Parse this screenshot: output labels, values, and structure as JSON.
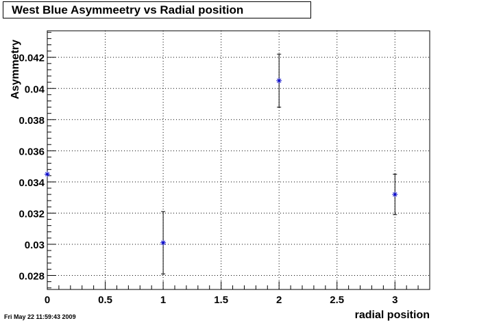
{
  "chart_data": {
    "type": "scatter",
    "title": "West Blue Asymmeetry vs Radial position",
    "xlabel": "radial position",
    "ylabel": "Asymmetry",
    "xlim": [
      0,
      3.3
    ],
    "ylim": [
      0.0271,
      0.0437
    ],
    "x_ticks": [
      0,
      0.5,
      1,
      1.5,
      2,
      2.5,
      3
    ],
    "x_tick_labels": [
      "0",
      "0.5",
      "1",
      "1.5",
      "2",
      "2.5",
      "3"
    ],
    "y_ticks": [
      0.028,
      0.03,
      0.032,
      0.034,
      0.036,
      0.038,
      0.04,
      0.042
    ],
    "y_tick_labels": [
      "0.028",
      "0.03",
      "0.032",
      "0.034",
      "0.036",
      "0.038",
      "0.04",
      "0.042"
    ],
    "grid": true,
    "marker_color": "#0000cc",
    "series": [
      {
        "x": [
          0,
          1,
          2,
          3
        ],
        "y": [
          0.0345,
          0.0301,
          0.0405,
          0.0332
        ],
        "y_err": [
          0,
          0.002,
          0.0017,
          0.0013
        ]
      }
    ]
  },
  "footer": {
    "timestamp": "Fri May 22 11:59:43 2009"
  }
}
